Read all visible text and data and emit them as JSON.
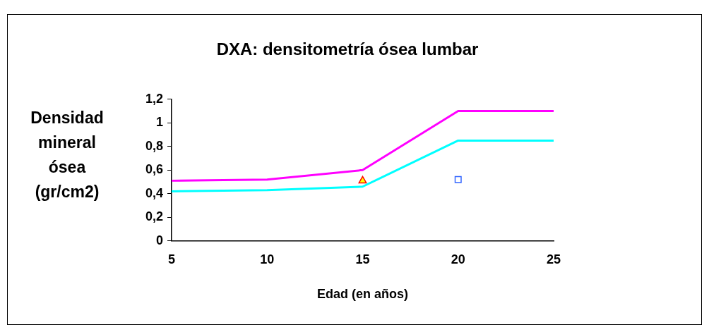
{
  "chart_data": {
    "type": "line",
    "title": "DXA: densitometría ósea lumbar",
    "xlabel": "Edad (en años)",
    "ylabel": "Densidad mineral ósea (gr/cm2)",
    "x": [
      5,
      10,
      15,
      20,
      25
    ],
    "series": [
      {
        "color": "#ff00ff",
        "values": [
          0.51,
          0.52,
          0.6,
          1.1,
          1.1
        ]
      },
      {
        "color": "#00ffff",
        "values": [
          0.42,
          0.43,
          0.46,
          0.85,
          0.85
        ]
      },
      {
        "type": "scatter",
        "marker": "triangle",
        "color": "#ff0000",
        "x": [
          15
        ],
        "values": [
          0.51
        ]
      },
      {
        "type": "scatter",
        "marker": "square",
        "color": "#3366ff",
        "x": [
          20
        ],
        "values": [
          0.52
        ]
      }
    ],
    "xlim": [
      5,
      25
    ],
    "xticks": [
      5,
      10,
      15,
      20,
      25
    ],
    "ylim": [
      0,
      1.2
    ],
    "yticks": [
      0,
      {
        "value": 0.2,
        "label": "0,2"
      },
      {
        "value": 0.4,
        "label": "0,4"
      },
      {
        "value": 0.6,
        "label": "0,6"
      },
      {
        "value": 0.8,
        "label": "0,8"
      },
      1,
      {
        "value": 1.2,
        "label": "1,2"
      }
    ],
    "grid": false,
    "legend": false,
    "marker": "none",
    "line_style": "solid"
  }
}
